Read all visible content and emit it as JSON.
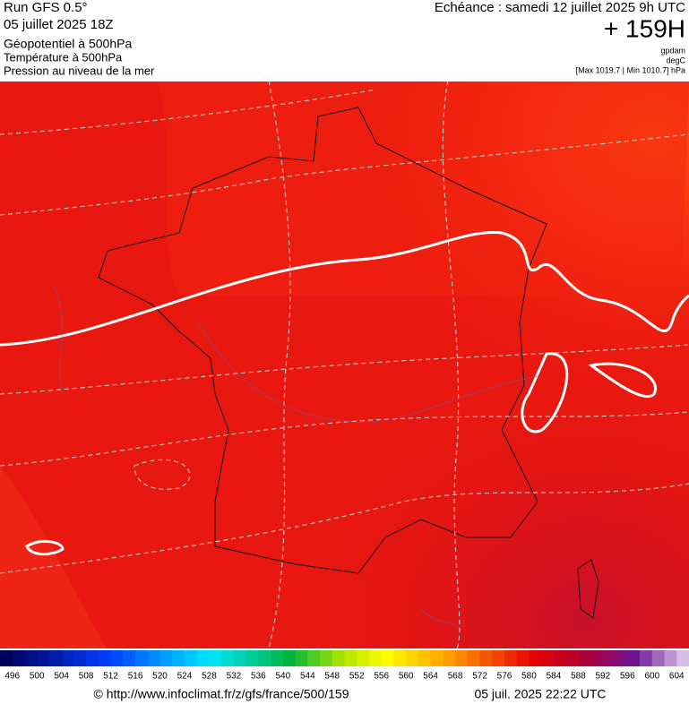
{
  "header": {
    "run": "Run GFS 0.5°",
    "date": "05 juillet 2025 18Z",
    "title": "Géopotentiel à 500hPa",
    "subtitle1": "Température à 500hPa",
    "subtitle2": "Pression au niveau de la mer",
    "echeance": "Echéance : samedi 12 juillet 2025 9h UTC",
    "horizon": "+ 159H",
    "unit1": "gpdam",
    "unit2": "degC",
    "range": "[Max 1019.7 | Min 1010.7] hPa"
  },
  "colorbar": {
    "labels": [
      496,
      500,
      504,
      508,
      512,
      516,
      520,
      524,
      528,
      532,
      536,
      540,
      544,
      548,
      552,
      556,
      560,
      564,
      568,
      572,
      576,
      580,
      584,
      588,
      592,
      596,
      600,
      604
    ]
  },
  "footer": {
    "url": "© http://www.infoclimat.fr/z/gfs/france/500/159",
    "timestamp": "05 juil. 2025 22:22 UTC"
  }
}
